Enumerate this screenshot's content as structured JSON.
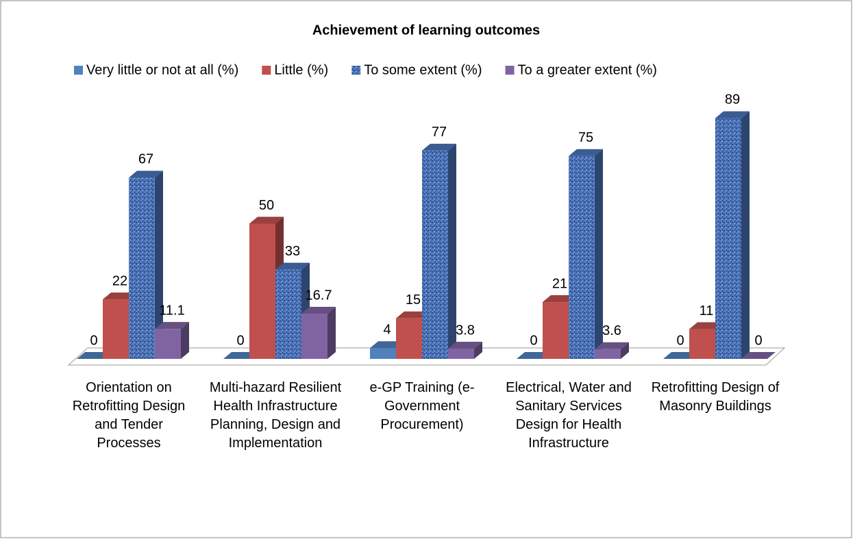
{
  "chart_data": {
    "type": "bar3d",
    "title": "Achievement of learning outcomes",
    "categories": [
      "Orientation on Retrofitting Design and Tender Processes",
      "Multi-hazard Resilient Health Infrastructure Planning, Design and Implementation",
      "e-GP Training (e-Government Procurement)",
      "Electrical, Water and Sanitary Services Design for Health Infrastructure",
      "Retrofitting Design of Masonry Buildings"
    ],
    "series": [
      {
        "name": "Very little or not at all (%)",
        "color": "#4f81bd",
        "values": [
          0,
          0,
          4,
          0,
          0
        ]
      },
      {
        "name": "Little (%)",
        "color": "#c0504d",
        "values": [
          22,
          50,
          15,
          21,
          11
        ]
      },
      {
        "name": "To some extent (%)",
        "color": "#4a72b8",
        "values": [
          67,
          33,
          77,
          75,
          89
        ]
      },
      {
        "name": "To a greater extent (%)",
        "color": "#8064a2",
        "values": [
          11.1,
          16.7,
          3.8,
          3.6,
          0
        ]
      }
    ],
    "legend": "top"
  }
}
